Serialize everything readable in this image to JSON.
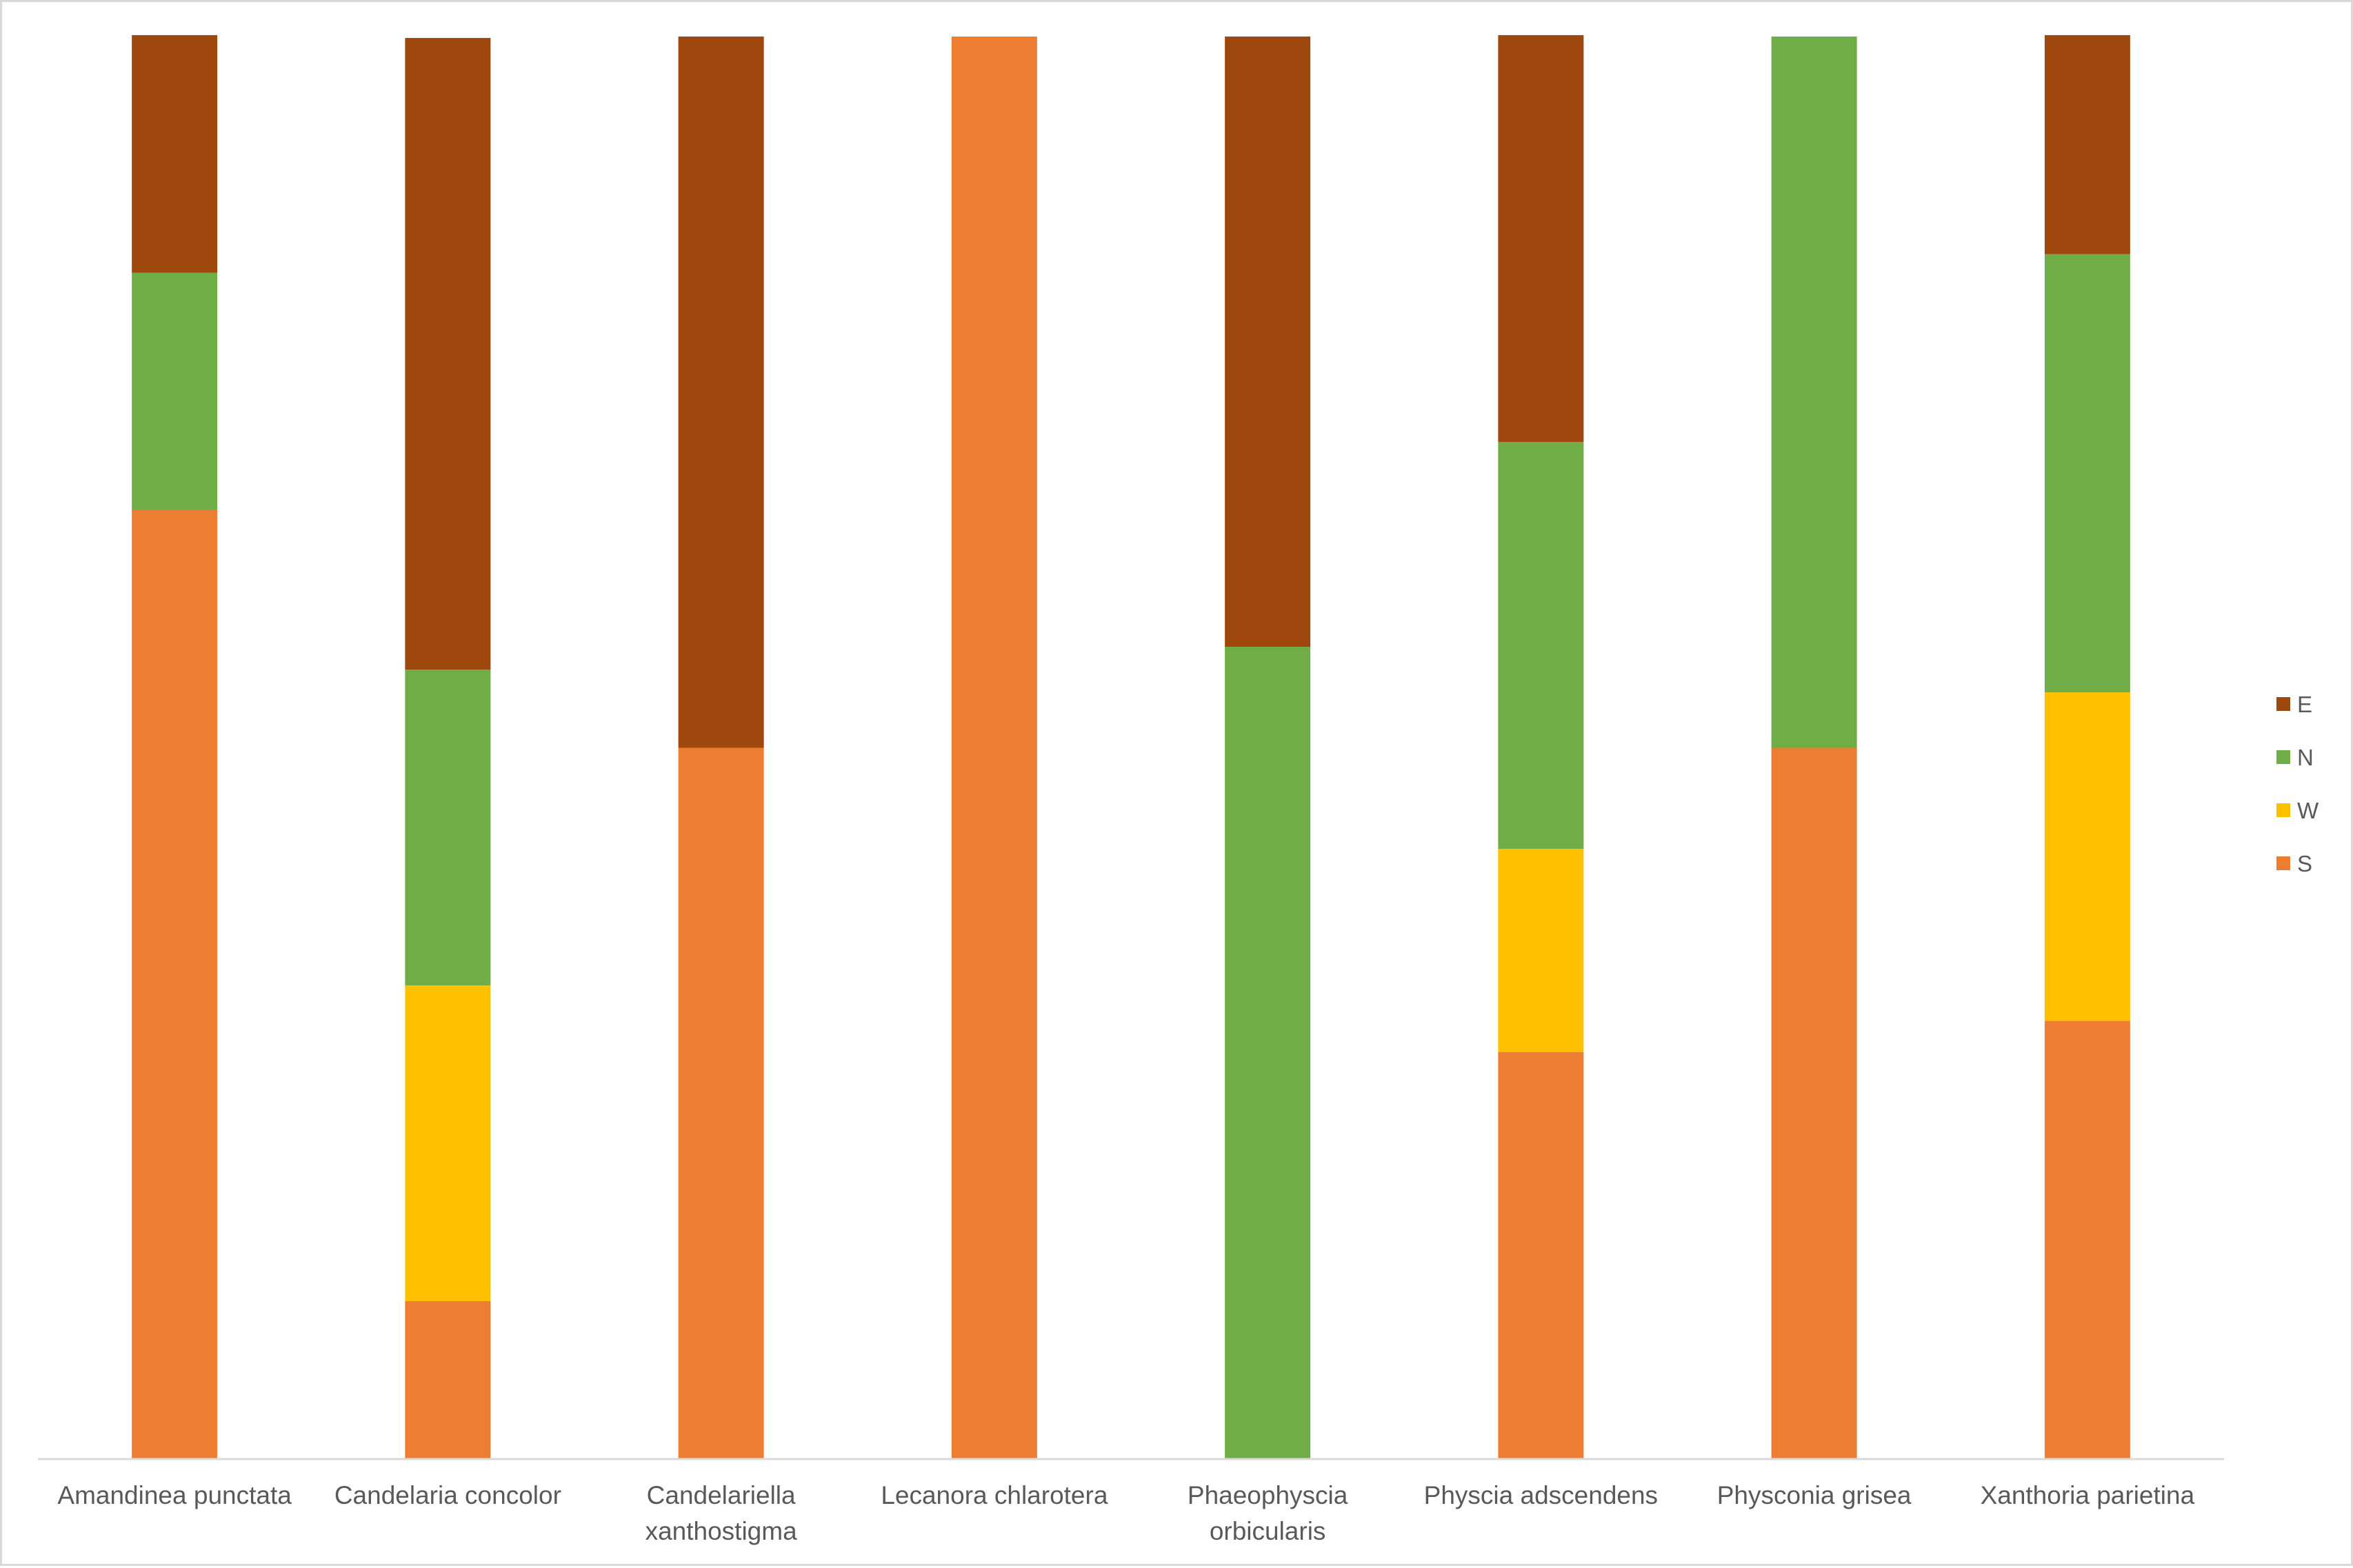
{
  "chart_data": {
    "type": "bar",
    "stacked": true,
    "percent_stacked": true,
    "title": "",
    "xlabel": "",
    "ylabel": "",
    "ylim": [
      0,
      100
    ],
    "grid": false,
    "legend_position": "right",
    "categories": [
      [
        "Amandinea punctata"
      ],
      [
        "Candelaria concolor"
      ],
      [
        "Candelariella",
        "xanthostigma"
      ],
      [
        "Lecanora chlarotera"
      ],
      [
        "Phaeophyscia",
        "orbicularis"
      ],
      [
        "Physcia adscendens"
      ],
      [
        "Physconia grisea"
      ],
      [
        "Xanthoria parietina"
      ]
    ],
    "series": [
      {
        "name": "S",
        "color": "#ED7D31",
        "values": [
          66.7,
          11.1,
          50.0,
          100.0,
          0.0,
          28.6,
          50.0,
          30.8
        ]
      },
      {
        "name": "W",
        "color": "#FFC000",
        "values": [
          0.0,
          22.2,
          0.0,
          0.0,
          0.0,
          14.3,
          0.0,
          23.1
        ]
      },
      {
        "name": "N",
        "color": "#70AD47",
        "values": [
          16.7,
          22.2,
          0.0,
          0.0,
          57.1,
          28.6,
          50.0,
          30.8
        ]
      },
      {
        "name": "E",
        "color": "#9E480E",
        "values": [
          16.7,
          44.4,
          50.0,
          0.0,
          42.9,
          28.6,
          0.0,
          15.4
        ]
      }
    ],
    "legend_order": [
      "E",
      "N",
      "W",
      "S"
    ]
  }
}
